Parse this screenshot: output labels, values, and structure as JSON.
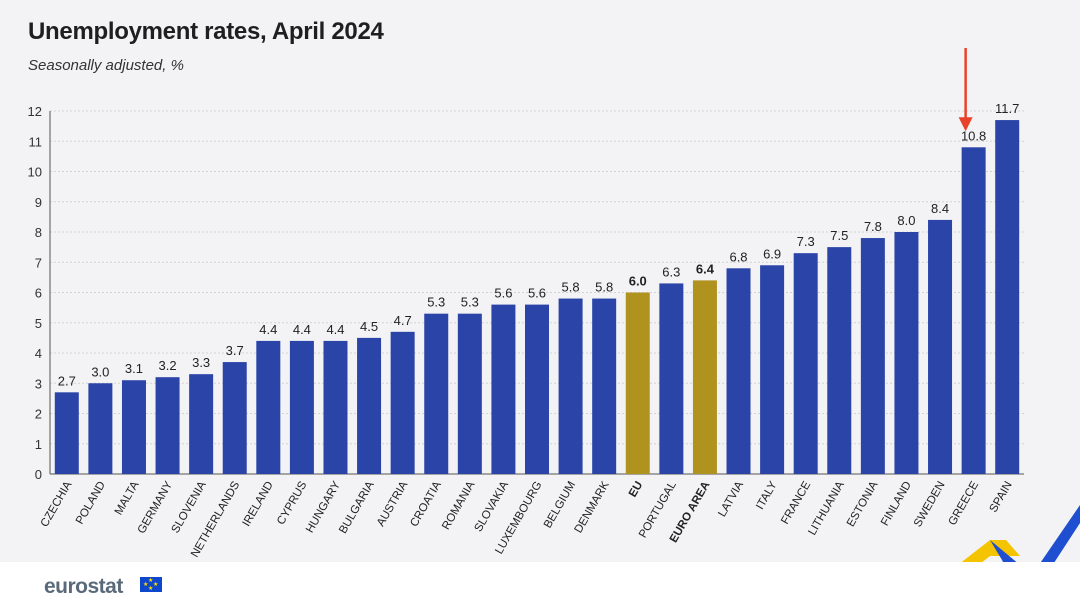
{
  "header": {
    "title": "Unemployment rates, April 2024",
    "subtitle": "Seasonally adjusted, %"
  },
  "footer": {
    "logo": "eurostat"
  },
  "colors": {
    "bar": "#2a44a8",
    "highlight": "#b0921f",
    "grid": "#d3d3d3",
    "arrow": "#e8432a"
  },
  "annotation": {
    "type": "arrow",
    "target": "GREECE"
  },
  "chart_data": {
    "type": "bar",
    "title": "Unemployment rates, April 2024",
    "subtitle": "Seasonally adjusted, %",
    "xlabel": "",
    "ylabel": "",
    "ylim": [
      0,
      12
    ],
    "yticks": [
      0,
      1,
      2,
      3,
      4,
      5,
      6,
      7,
      8,
      9,
      10,
      11,
      12
    ],
    "grid": true,
    "categories": [
      "CZECHIA",
      "POLAND",
      "MALTA",
      "GERMANY",
      "SLOVENIA",
      "NETHERLANDS",
      "IRELAND",
      "CYPRUS",
      "HUNGARY",
      "BULGARIA",
      "AUSTRIA",
      "CROATIA",
      "ROMANIA",
      "SLOVAKIA",
      "LUXEMBOURG",
      "BELGIUM",
      "DENMARK",
      "EU",
      "PORTUGAL",
      "EURO AREA",
      "LATVIA",
      "ITALY",
      "FRANCE",
      "LITHUANIA",
      "ESTONIA",
      "FINLAND",
      "SWEDEN",
      "GREECE",
      "SPAIN"
    ],
    "values": [
      2.7,
      3.0,
      3.1,
      3.2,
      3.3,
      3.7,
      4.4,
      4.4,
      4.4,
      4.5,
      4.7,
      5.3,
      5.3,
      5.6,
      5.6,
      5.8,
      5.8,
      6.0,
      6.3,
      6.4,
      6.8,
      6.9,
      7.3,
      7.5,
      7.8,
      8.0,
      8.4,
      10.8,
      11.7
    ],
    "value_labels": [
      "2.7",
      "3.0",
      "3.1",
      "3.2",
      "3.3",
      "3.7",
      "4.4",
      "4.4",
      "4.4",
      "4.5",
      "4.7",
      "5.3",
      "5.3",
      "5.6",
      "5.6",
      "5.8",
      "5.8",
      "6.0",
      "6.3",
      "6.4",
      "6.8",
      "6.9",
      "7.3",
      "7.5",
      "7.8",
      "8.0",
      "8.4",
      "10.8",
      "11.7"
    ],
    "highlighted": [
      "EU",
      "EURO AREA"
    ]
  }
}
